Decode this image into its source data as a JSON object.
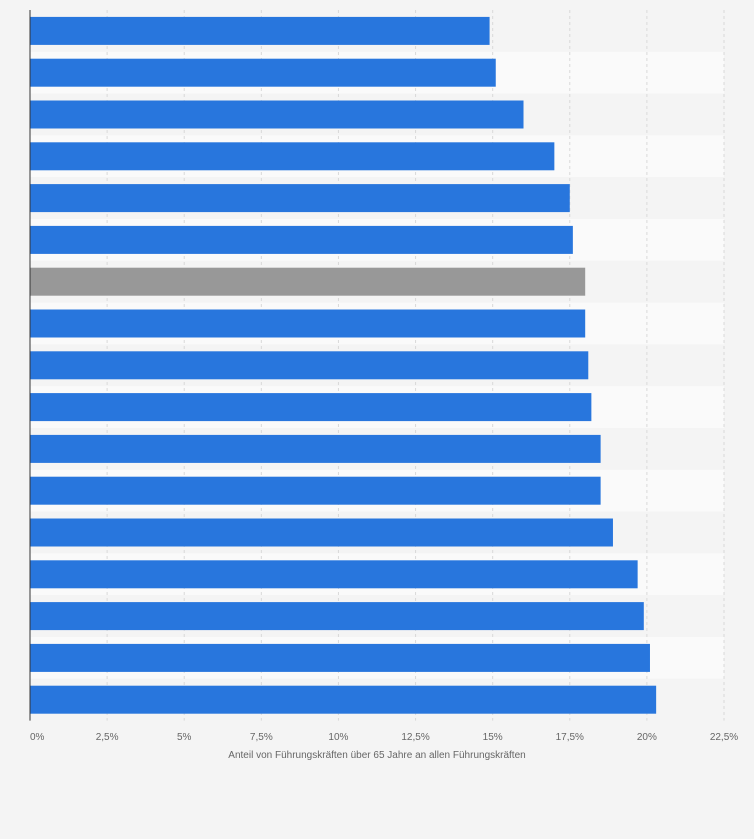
{
  "chart_data": {
    "type": "bar",
    "orientation": "horizontal",
    "title": "",
    "xlabel": "Anteil von Führungskräften über 65 Jahre an allen Führungskräften",
    "ylabel": "",
    "xlim": [
      0,
      22.5
    ],
    "x_ticks": [
      "0%",
      "2,5%",
      "5%",
      "7,5%",
      "10%",
      "12,5%",
      "15%",
      "17,5%",
      "20%",
      "22,5%"
    ],
    "grid": true,
    "values": [
      14.9,
      15.1,
      16.0,
      17.0,
      17.5,
      17.6,
      18.0,
      18.0,
      18.1,
      18.2,
      18.5,
      18.5,
      18.9,
      19.7,
      19.9,
      20.1,
      20.3
    ],
    "highlight_index": 6,
    "colors": {
      "bar": "#2876dd",
      "highlight": "#989898",
      "grid": "#d9d9d9",
      "axis": "#333333"
    }
  }
}
